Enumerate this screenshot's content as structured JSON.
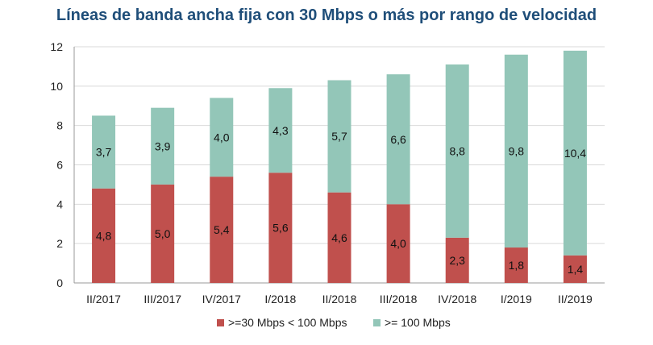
{
  "chart_data": {
    "type": "bar",
    "stacked": true,
    "title": "Líneas de banda ancha fija con 30 Mbps o más por rango de velocidad",
    "categories": [
      "II/2017",
      "III/2017",
      "IV/2017",
      "I/2018",
      "II/2018",
      "III/2018",
      "IV/2018",
      "I/2019",
      "II/2019"
    ],
    "series": [
      {
        "name": ">=30 Mbps < 100 Mbps",
        "color": "#c0504d",
        "values": [
          4.8,
          5.0,
          5.4,
          5.6,
          4.6,
          4.0,
          2.3,
          1.8,
          1.4
        ],
        "labels": [
          "4,8",
          "5,0",
          "5,4",
          "5,6",
          "4,6",
          "4,0",
          "2,3",
          "1,8",
          "1,4"
        ]
      },
      {
        "name": ">= 100 Mbps",
        "color": "#93c6b8",
        "values": [
          3.7,
          3.9,
          4.0,
          4.3,
          5.7,
          6.6,
          8.8,
          9.8,
          10.4
        ],
        "labels": [
          "3,7",
          "3,9",
          "4,0",
          "4,3",
          "5,7",
          "6,6",
          "8,8",
          "9,8",
          "10,4"
        ]
      }
    ],
    "ylim": [
      0,
      12
    ],
    "yticks": [
      0,
      2,
      4,
      6,
      8,
      10,
      12
    ],
    "legend_position": "bottom"
  }
}
